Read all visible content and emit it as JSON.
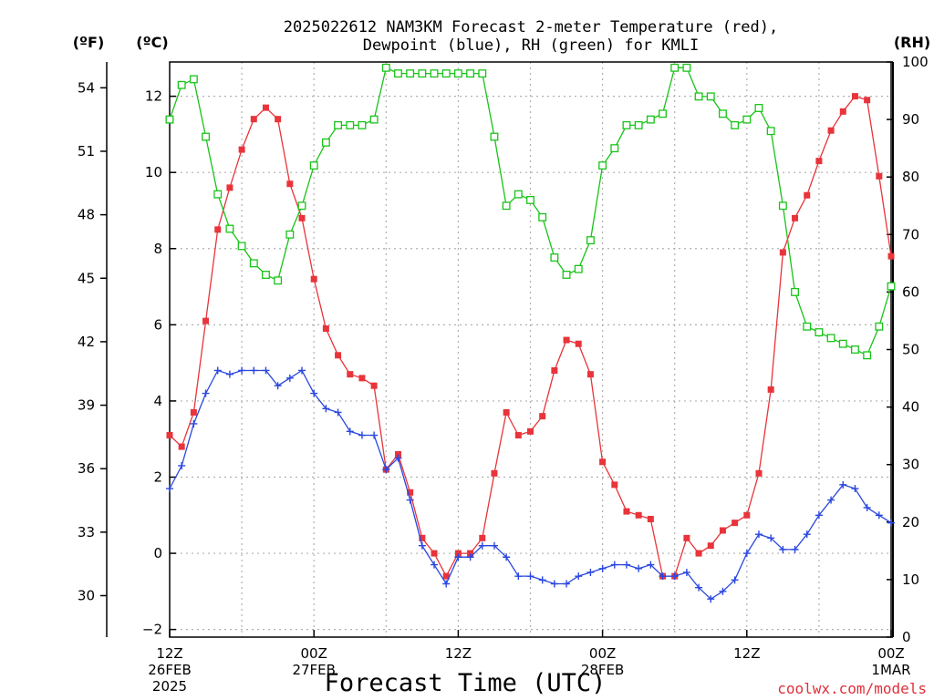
{
  "title_line1": "2025022612 NAM3KM Forecast 2-meter Temperature (red),",
  "title_line2": "Dewpoint (blue), RH (green) for KMLI",
  "unit_f": "(ºF)",
  "unit_c": "(ºC)",
  "unit_rh": "(RH)",
  "xlabel": "Forecast Time (UTC)",
  "credit": "coolwx.com/models",
  "colors": {
    "temperature": "#e8343a",
    "dewpoint": "#2a47e0",
    "rh": "#18c418",
    "grid": "#b0b0b0"
  },
  "chart_data": {
    "type": "line",
    "title": "2025022612 NAM3KM Forecast 2-meter Temperature (red), Dewpoint (blue), RH (green) for KMLI",
    "xlabel": "Forecast Time (UTC)",
    "x_unit": "forecast hour from 2025-02-26 12Z",
    "x_range": [
      0,
      60
    ],
    "grid": true,
    "x_ticks": [
      {
        "hour": 0,
        "lines": [
          "12Z",
          "26FEB",
          "2025"
        ]
      },
      {
        "hour": 12,
        "lines": [
          "00Z",
          "27FEB"
        ]
      },
      {
        "hour": 24,
        "lines": [
          "12Z"
        ]
      },
      {
        "hour": 36,
        "lines": [
          "00Z",
          "28FEB"
        ]
      },
      {
        "hour": 48,
        "lines": [
          "12Z"
        ]
      },
      {
        "hour": 60,
        "lines": [
          "00Z",
          "1MAR"
        ]
      }
    ],
    "y_left_c": {
      "label": "(ºC)",
      "range": [
        -2.2,
        12.9
      ],
      "ticks": [
        "12",
        "10",
        "8",
        "6",
        "4",
        "2",
        "0",
        "−2"
      ]
    },
    "y_left_f": {
      "label": "(ºF)",
      "range": [
        28.04,
        55.22
      ],
      "ticks": [
        "54",
        "51",
        "48",
        "45",
        "42",
        "39",
        "36",
        "33",
        "30"
      ]
    },
    "y_right_rh": {
      "label": "(RH)",
      "range": [
        0,
        100
      ],
      "ticks": [
        "100",
        "90",
        "80",
        "70",
        "60",
        "50",
        "40",
        "30",
        "20",
        "10",
        "0"
      ]
    },
    "x": [
      0,
      1,
      2,
      3,
      4,
      5,
      6,
      7,
      8,
      9,
      10,
      11,
      12,
      13,
      14,
      15,
      16,
      17,
      18,
      19,
      20,
      21,
      22,
      23,
      24,
      25,
      26,
      27,
      28,
      29,
      30,
      31,
      32,
      33,
      34,
      35,
      36,
      37,
      38,
      39,
      40,
      41,
      42,
      43,
      44,
      45,
      46,
      47,
      48,
      49,
      50,
      51,
      52,
      53,
      54,
      55,
      56,
      57,
      58,
      59,
      60
    ],
    "series": [
      {
        "name": "2-meter Temperature",
        "unit": "C",
        "values": [
          3.1,
          2.8,
          3.7,
          6.1,
          8.5,
          9.6,
          10.6,
          11.4,
          11.7,
          11.4,
          9.7,
          8.8,
          7.2,
          5.9,
          5.2,
          4.7,
          4.6,
          4.4,
          2.2,
          2.6,
          1.6,
          0.4,
          0.0,
          -0.6,
          0.0,
          0.0,
          0.4,
          2.1,
          3.7,
          3.1,
          3.2,
          3.6,
          4.8,
          5.6,
          5.5,
          4.7,
          2.4,
          1.8,
          1.1,
          1.0,
          0.9,
          -0.6,
          -0.6,
          0.4,
          0.0,
          0.2,
          0.6,
          0.8,
          1.0,
          2.1,
          4.3,
          7.9,
          8.8,
          9.4,
          10.3,
          11.1,
          11.6,
          12.0,
          11.9,
          9.9,
          7.8
        ]
      },
      {
        "name": "Dewpoint",
        "unit": "C",
        "values": [
          1.7,
          2.3,
          3.4,
          4.2,
          4.8,
          4.7,
          4.8,
          4.8,
          4.8,
          4.4,
          4.6,
          4.8,
          4.2,
          3.8,
          3.7,
          3.2,
          3.1,
          3.1,
          2.2,
          2.5,
          1.4,
          0.2,
          -0.3,
          -0.8,
          -0.1,
          -0.1,
          0.2,
          0.2,
          -0.1,
          -0.6,
          -0.6,
          -0.7,
          -0.8,
          -0.8,
          -0.6,
          -0.5,
          -0.4,
          -0.3,
          -0.3,
          -0.4,
          -0.3,
          -0.6,
          -0.6,
          -0.5,
          -0.9,
          -1.2,
          -1.0,
          -0.7,
          0.0,
          0.5,
          0.4,
          0.1,
          0.1,
          0.5,
          1.0,
          1.4,
          1.8,
          1.7,
          1.2,
          1.0,
          0.8
        ]
      },
      {
        "name": "RH",
        "unit": "%",
        "values": [
          90,
          96,
          97,
          87,
          77,
          71,
          68,
          65,
          63,
          62,
          70,
          75,
          82,
          86,
          89,
          89,
          89,
          90,
          99,
          98,
          98,
          98,
          98,
          98,
          98,
          98,
          98,
          87,
          75,
          77,
          76,
          73,
          66,
          63,
          64,
          69,
          82,
          85,
          89,
          89,
          90,
          91,
          99,
          99,
          94,
          94,
          91,
          89,
          90,
          92,
          88,
          75,
          60,
          54,
          53,
          52,
          51,
          50,
          49,
          54,
          61
        ]
      }
    ]
  }
}
